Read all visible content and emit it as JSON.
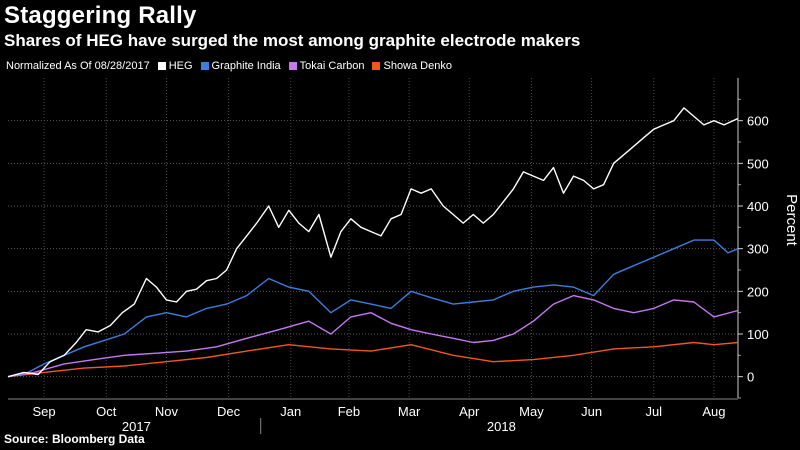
{
  "header": {
    "title": "Staggering Rally",
    "subtitle": "Shares of HEG have surged the most among graphite electrode makers"
  },
  "legend": {
    "note": "Normalized As Of 08/28/2017",
    "items": [
      {
        "label": "HEG",
        "color": "#ffffff"
      },
      {
        "label": "Graphite India",
        "color": "#3a7fe0"
      },
      {
        "label": "Tokai Carbon",
        "color": "#c678f0"
      },
      {
        "label": "Showa Denko",
        "color": "#f0571e"
      }
    ]
  },
  "footer": {
    "source": "Source: Bloomberg Data"
  },
  "chart_data": {
    "type": "line",
    "ylabel": "Percent",
    "yaxis_side": "right",
    "ylim": [
      -50,
      700
    ],
    "yticks": [
      0,
      100,
      200,
      300,
      400,
      500,
      600
    ],
    "xlim": [
      "2017-08-28",
      "2018-08-27"
    ],
    "month_ticks": [
      {
        "label": "Sep",
        "date": "2017-09-15"
      },
      {
        "label": "Oct",
        "date": "2017-10-16"
      },
      {
        "label": "Nov",
        "date": "2017-11-15"
      },
      {
        "label": "Dec",
        "date": "2017-12-16"
      },
      {
        "label": "Jan",
        "date": "2018-01-16"
      },
      {
        "label": "Feb",
        "date": "2018-02-14"
      },
      {
        "label": "Mar",
        "date": "2018-03-16"
      },
      {
        "label": "Apr",
        "date": "2018-04-15"
      },
      {
        "label": "May",
        "date": "2018-05-16"
      },
      {
        "label": "Jun",
        "date": "2018-06-15"
      },
      {
        "label": "Jul",
        "date": "2018-07-16"
      },
      {
        "label": "Aug",
        "date": "2018-08-15"
      }
    ],
    "year_labels": [
      {
        "label": "2017",
        "date": "2017-10-31"
      },
      {
        "label": "2018",
        "date": "2018-05-01"
      }
    ],
    "grid": true,
    "series": [
      {
        "name": "HEG",
        "color": "#ffffff",
        "points": [
          [
            "2017-08-28",
            0
          ],
          [
            "2017-09-05",
            10
          ],
          [
            "2017-09-12",
            5
          ],
          [
            "2017-09-18",
            35
          ],
          [
            "2017-09-25",
            50
          ],
          [
            "2017-10-01",
            80
          ],
          [
            "2017-10-06",
            110
          ],
          [
            "2017-10-12",
            105
          ],
          [
            "2017-10-18",
            120
          ],
          [
            "2017-10-24",
            150
          ],
          [
            "2017-10-30",
            170
          ],
          [
            "2017-11-05",
            230
          ],
          [
            "2017-11-10",
            210
          ],
          [
            "2017-11-15",
            180
          ],
          [
            "2017-11-20",
            175
          ],
          [
            "2017-11-25",
            200
          ],
          [
            "2017-11-30",
            205
          ],
          [
            "2017-12-05",
            225
          ],
          [
            "2017-12-10",
            230
          ],
          [
            "2017-12-15",
            250
          ],
          [
            "2017-12-20",
            300
          ],
          [
            "2017-12-25",
            330
          ],
          [
            "2017-12-30",
            360
          ],
          [
            "2018-01-05",
            400
          ],
          [
            "2018-01-10",
            350
          ],
          [
            "2018-01-15",
            390
          ],
          [
            "2018-01-20",
            360
          ],
          [
            "2018-01-25",
            340
          ],
          [
            "2018-01-30",
            380
          ],
          [
            "2018-02-05",
            280
          ],
          [
            "2018-02-10",
            340
          ],
          [
            "2018-02-15",
            370
          ],
          [
            "2018-02-20",
            350
          ],
          [
            "2018-02-25",
            340
          ],
          [
            "2018-03-02",
            330
          ],
          [
            "2018-03-07",
            370
          ],
          [
            "2018-03-12",
            380
          ],
          [
            "2018-03-17",
            440
          ],
          [
            "2018-03-22",
            430
          ],
          [
            "2018-03-27",
            440
          ],
          [
            "2018-04-02",
            400
          ],
          [
            "2018-04-07",
            380
          ],
          [
            "2018-04-12",
            360
          ],
          [
            "2018-04-17",
            380
          ],
          [
            "2018-04-22",
            360
          ],
          [
            "2018-04-27",
            380
          ],
          [
            "2018-05-02",
            410
          ],
          [
            "2018-05-07",
            440
          ],
          [
            "2018-05-12",
            480
          ],
          [
            "2018-05-17",
            470
          ],
          [
            "2018-05-22",
            460
          ],
          [
            "2018-05-27",
            490
          ],
          [
            "2018-06-01",
            430
          ],
          [
            "2018-06-06",
            470
          ],
          [
            "2018-06-11",
            460
          ],
          [
            "2018-06-16",
            440
          ],
          [
            "2018-06-21",
            450
          ],
          [
            "2018-06-26",
            500
          ],
          [
            "2018-07-01",
            520
          ],
          [
            "2018-07-06",
            540
          ],
          [
            "2018-07-11",
            560
          ],
          [
            "2018-07-16",
            580
          ],
          [
            "2018-07-21",
            590
          ],
          [
            "2018-07-26",
            600
          ],
          [
            "2018-07-31",
            630
          ],
          [
            "2018-08-05",
            610
          ],
          [
            "2018-08-10",
            590
          ],
          [
            "2018-08-15",
            600
          ],
          [
            "2018-08-20",
            590
          ],
          [
            "2018-08-27",
            605
          ]
        ]
      },
      {
        "name": "Graphite India",
        "color": "#3a7fe0",
        "points": [
          [
            "2017-08-28",
            0
          ],
          [
            "2017-09-07",
            10
          ],
          [
            "2017-09-15",
            30
          ],
          [
            "2017-09-25",
            50
          ],
          [
            "2017-10-05",
            70
          ],
          [
            "2017-10-15",
            85
          ],
          [
            "2017-10-25",
            100
          ],
          [
            "2017-11-05",
            140
          ],
          [
            "2017-11-15",
            150
          ],
          [
            "2017-11-25",
            140
          ],
          [
            "2017-12-05",
            160
          ],
          [
            "2017-12-15",
            170
          ],
          [
            "2017-12-25",
            190
          ],
          [
            "2018-01-05",
            230
          ],
          [
            "2018-01-15",
            210
          ],
          [
            "2018-01-25",
            200
          ],
          [
            "2018-02-05",
            150
          ],
          [
            "2018-02-15",
            180
          ],
          [
            "2018-02-25",
            170
          ],
          [
            "2018-03-07",
            160
          ],
          [
            "2018-03-17",
            200
          ],
          [
            "2018-03-27",
            185
          ],
          [
            "2018-04-07",
            170
          ],
          [
            "2018-04-17",
            175
          ],
          [
            "2018-04-27",
            180
          ],
          [
            "2018-05-07",
            200
          ],
          [
            "2018-05-17",
            210
          ],
          [
            "2018-05-27",
            215
          ],
          [
            "2018-06-06",
            210
          ],
          [
            "2018-06-16",
            190
          ],
          [
            "2018-06-26",
            240
          ],
          [
            "2018-07-06",
            260
          ],
          [
            "2018-07-16",
            280
          ],
          [
            "2018-07-26",
            300
          ],
          [
            "2018-08-05",
            320
          ],
          [
            "2018-08-15",
            320
          ],
          [
            "2018-08-22",
            290
          ],
          [
            "2018-08-27",
            300
          ]
        ]
      },
      {
        "name": "Tokai Carbon",
        "color": "#c678f0",
        "points": [
          [
            "2017-08-28",
            0
          ],
          [
            "2017-09-10",
            10
          ],
          [
            "2017-09-25",
            30
          ],
          [
            "2017-10-10",
            40
          ],
          [
            "2017-10-25",
            50
          ],
          [
            "2017-11-10",
            55
          ],
          [
            "2017-11-25",
            60
          ],
          [
            "2017-12-10",
            70
          ],
          [
            "2017-12-25",
            90
          ],
          [
            "2018-01-10",
            110
          ],
          [
            "2018-01-25",
            130
          ],
          [
            "2018-02-05",
            100
          ],
          [
            "2018-02-15",
            140
          ],
          [
            "2018-02-25",
            150
          ],
          [
            "2018-03-07",
            125
          ],
          [
            "2018-03-17",
            110
          ],
          [
            "2018-03-27",
            100
          ],
          [
            "2018-04-07",
            90
          ],
          [
            "2018-04-17",
            80
          ],
          [
            "2018-04-27",
            85
          ],
          [
            "2018-05-07",
            100
          ],
          [
            "2018-05-17",
            130
          ],
          [
            "2018-05-27",
            170
          ],
          [
            "2018-06-06",
            190
          ],
          [
            "2018-06-16",
            180
          ],
          [
            "2018-06-26",
            160
          ],
          [
            "2018-07-06",
            150
          ],
          [
            "2018-07-16",
            160
          ],
          [
            "2018-07-26",
            180
          ],
          [
            "2018-08-05",
            175
          ],
          [
            "2018-08-15",
            140
          ],
          [
            "2018-08-27",
            155
          ]
        ]
      },
      {
        "name": "Showa Denko",
        "color": "#f0571e",
        "points": [
          [
            "2017-08-28",
            0
          ],
          [
            "2017-09-15",
            10
          ],
          [
            "2017-10-05",
            20
          ],
          [
            "2017-10-25",
            25
          ],
          [
            "2017-11-15",
            35
          ],
          [
            "2017-12-05",
            45
          ],
          [
            "2017-12-25",
            60
          ],
          [
            "2018-01-15",
            75
          ],
          [
            "2018-02-05",
            65
          ],
          [
            "2018-02-25",
            60
          ],
          [
            "2018-03-17",
            75
          ],
          [
            "2018-04-07",
            50
          ],
          [
            "2018-04-27",
            35
          ],
          [
            "2018-05-17",
            40
          ],
          [
            "2018-06-06",
            50
          ],
          [
            "2018-06-26",
            65
          ],
          [
            "2018-07-16",
            70
          ],
          [
            "2018-08-05",
            80
          ],
          [
            "2018-08-15",
            75
          ],
          [
            "2018-08-27",
            80
          ]
        ]
      }
    ]
  }
}
